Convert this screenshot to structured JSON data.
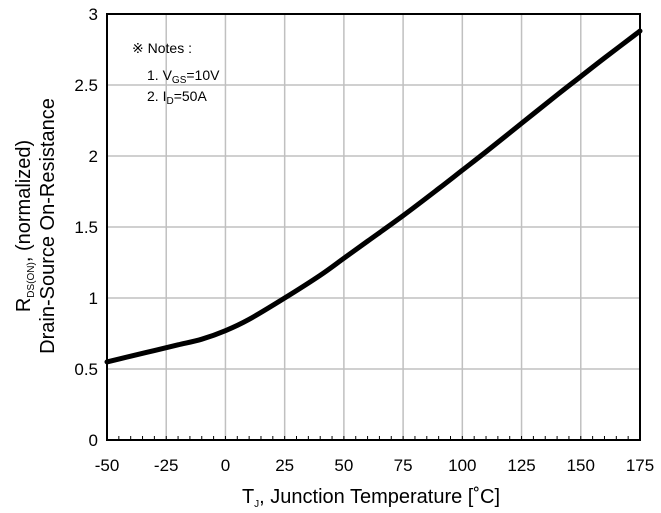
{
  "chart_data": {
    "type": "line",
    "title": "",
    "xlabel": {
      "main": "T",
      "sub": "J",
      "rest": ", Junction Temperature [˚C]"
    },
    "ylabel": {
      "line1": {
        "main": "R",
        "sub": "DS(ON)",
        "rest": ", (normalized)"
      },
      "line2": "Drain-Source On-Resistance"
    },
    "xlim": [
      -50,
      175
    ],
    "ylim": [
      0,
      3
    ],
    "x_ticks": [
      -50,
      -25,
      0,
      25,
      50,
      75,
      100,
      125,
      150,
      175
    ],
    "y_ticks": [
      0,
      0.5,
      1,
      1.5,
      2,
      2.5,
      3
    ],
    "grid": true,
    "notes": {
      "heading": "※ Notes :",
      "items": [
        {
          "prefix": "1. ",
          "main": "V",
          "sub": "GS",
          "rest": "=10V"
        },
        {
          "prefix": "2. ",
          "main": "I",
          "sub": "D",
          "rest": "=50A"
        }
      ]
    },
    "series": [
      {
        "color": "#000000",
        "x": [
          -50,
          -40,
          -30,
          -20,
          -10,
          0,
          10,
          25,
          40,
          50,
          60,
          75,
          90,
          100,
          110,
          125,
          140,
          150,
          160,
          175
        ],
        "y": [
          0.55,
          0.59,
          0.63,
          0.67,
          0.71,
          0.77,
          0.85,
          1.0,
          1.16,
          1.28,
          1.4,
          1.58,
          1.77,
          1.9,
          2.03,
          2.23,
          2.43,
          2.56,
          2.69,
          2.88
        ]
      }
    ]
  }
}
